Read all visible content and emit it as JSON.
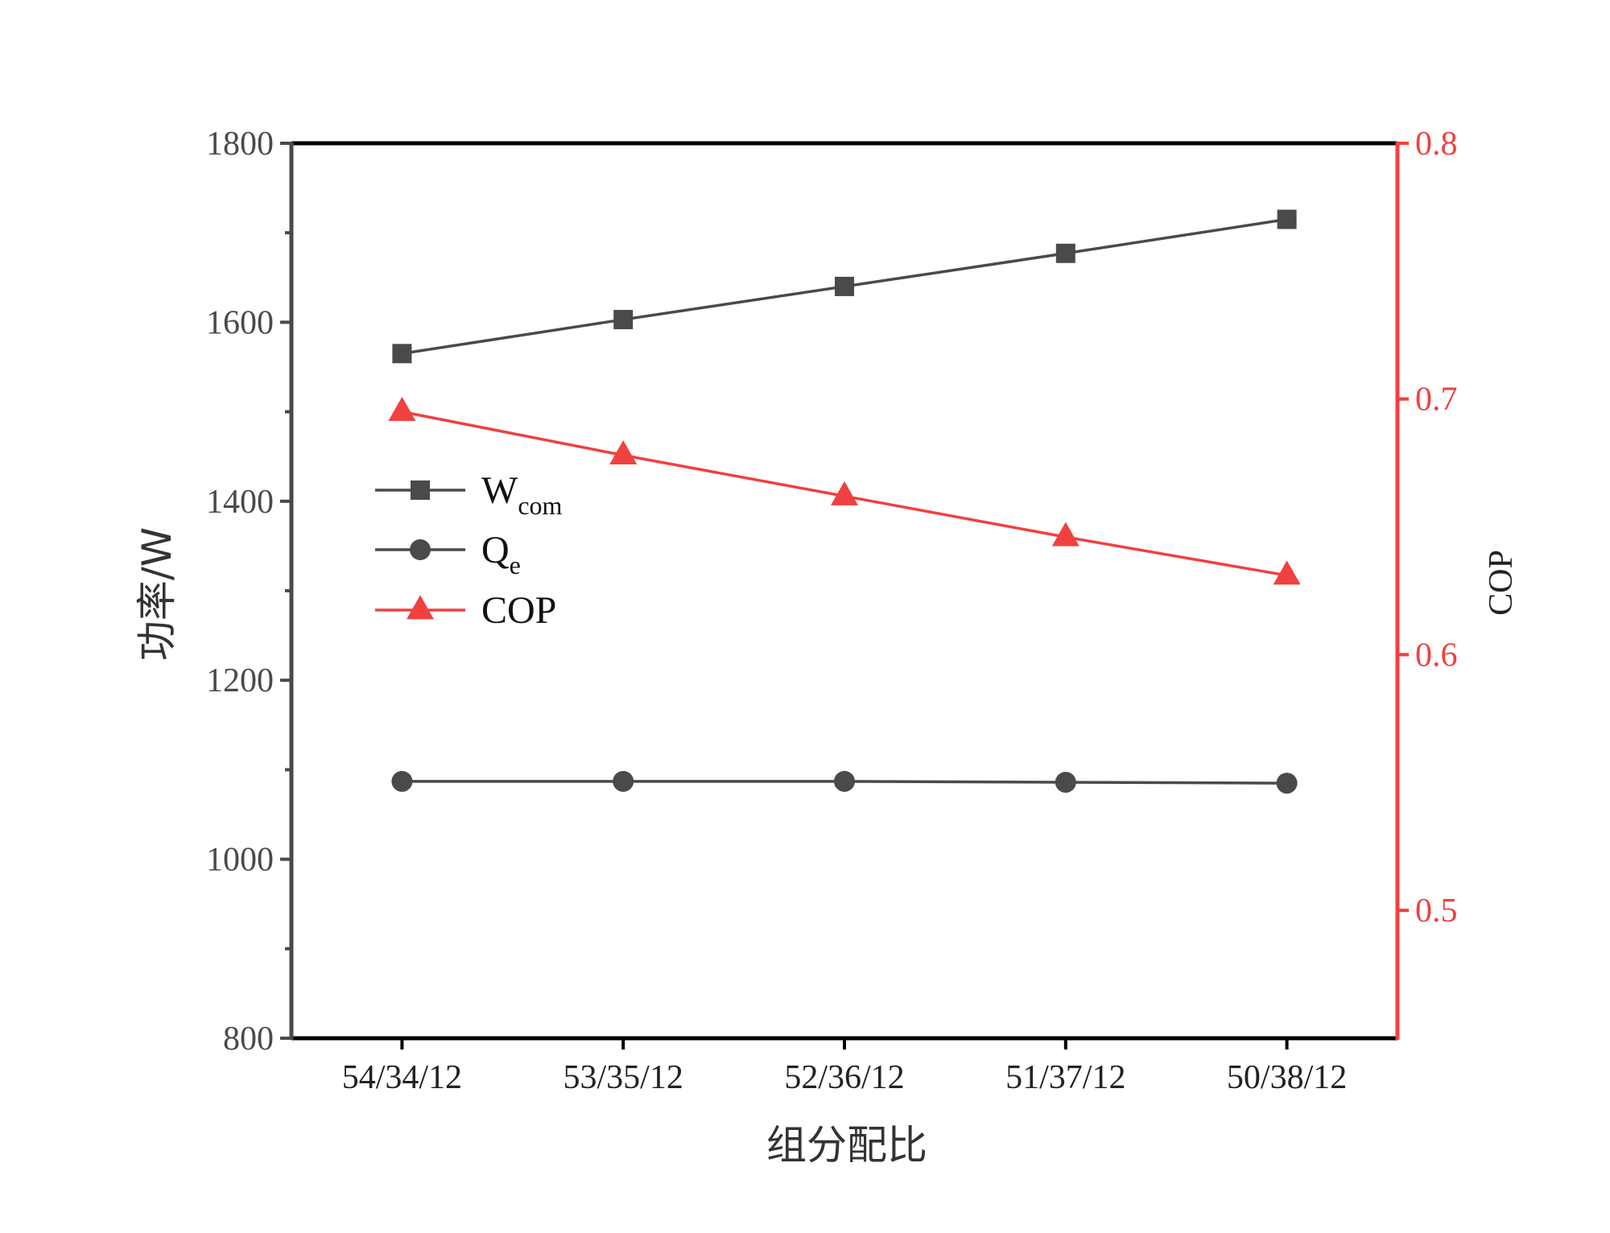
{
  "chart_data": {
    "type": "line",
    "categories": [
      "54/34/12",
      "53/35/12",
      "52/36/12",
      "51/37/12",
      "50/38/12"
    ],
    "xlabel": "组分配比",
    "ylabel": "功率/W",
    "y2label": "COP",
    "ylim": [
      800,
      1800
    ],
    "yticks": [
      800,
      1000,
      1200,
      1400,
      1600,
      1800
    ],
    "y2lim": [
      0.45,
      0.8
    ],
    "y2ticks": [
      0.5,
      0.6,
      0.7,
      0.8
    ],
    "legend_position": "left-center",
    "series": [
      {
        "name": "W",
        "name_sub": "com",
        "axis": "left",
        "marker": "square",
        "color": "#4a4a4a",
        "values": [
          1565,
          1603,
          1640,
          1677,
          1715
        ]
      },
      {
        "name": "Q",
        "name_sub": "e",
        "axis": "left",
        "marker": "circle",
        "color": "#4a4a4a",
        "values": [
          1087,
          1087,
          1087,
          1086,
          1085
        ]
      },
      {
        "name": "COP",
        "name_sub": "",
        "axis": "right",
        "marker": "triangle",
        "color": "#f04040",
        "values": [
          0.695,
          0.678,
          0.662,
          0.646,
          0.631
        ]
      }
    ],
    "colors": {
      "left_axis": "#4a4a4a",
      "right_axis": "#f04040",
      "frame": "#000000"
    }
  }
}
